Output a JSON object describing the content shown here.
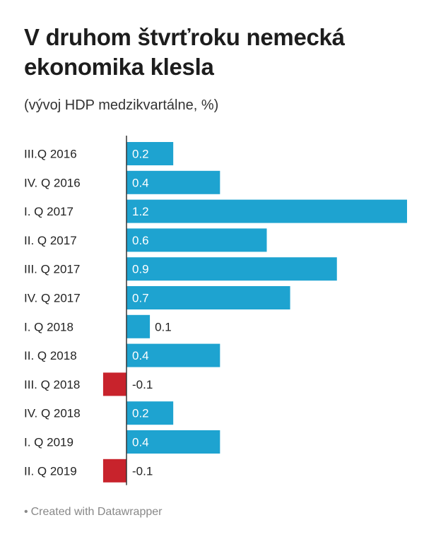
{
  "title": "V druhom štvrťroku nemecká ekonomika klesla",
  "subtitle": "(vývoj HDP medzikvartálne, %)",
  "footer": "Created with Datawrapper",
  "colors": {
    "positive": "#1ea3d0",
    "negative": "#c8232c",
    "axis": "#333333",
    "label_inside": "#ffffff",
    "label_outside": "#222222"
  },
  "chart_data": {
    "type": "bar",
    "orientation": "horizontal",
    "title": "V druhom štvrťroku nemecká ekonomika klesla",
    "subtitle": "(vývoj HDP medzikvartálne, %)",
    "categories": [
      "III.Q 2016",
      "IV. Q 2016",
      "I. Q 2017",
      "II. Q 2017",
      "III. Q 2017",
      "IV. Q 2017",
      "I. Q 2018",
      "II. Q 2018",
      "III. Q 2018",
      "IV. Q 2018",
      "I. Q 2019",
      "II. Q 2019"
    ],
    "values": [
      0.2,
      0.4,
      1.2,
      0.6,
      0.9,
      0.7,
      0.1,
      0.4,
      -0.1,
      0.2,
      0.4,
      -0.1
    ],
    "value_labels": [
      "0.2",
      "0.4",
      "1.2",
      "0.6",
      "0.9",
      "0.7",
      "0.1",
      "0.4",
      "-0.1",
      "0.2",
      "0.4",
      "-0.1"
    ],
    "xlim": [
      -0.1,
      1.2
    ],
    "grid": false,
    "legend": "none"
  }
}
